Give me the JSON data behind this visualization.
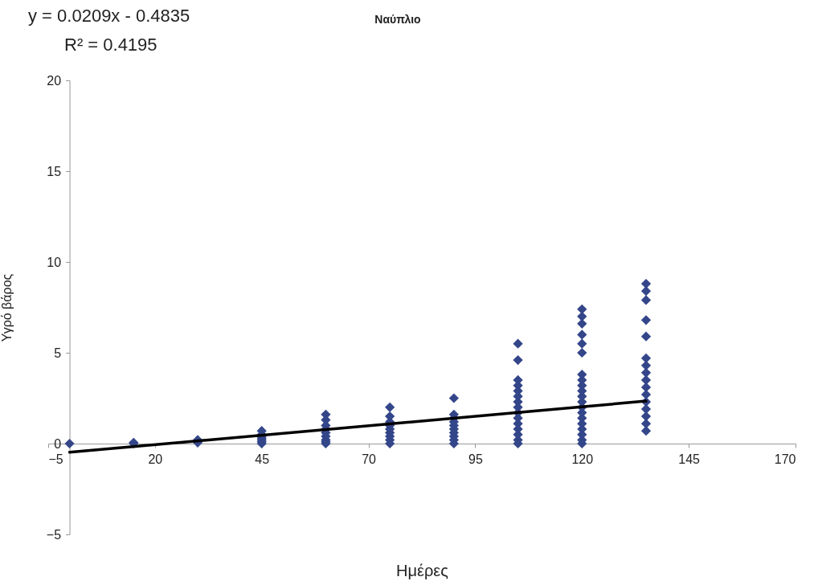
{
  "chart_data": {
    "type": "scatter",
    "title": "Ναύπλιο",
    "xlabel": "Ημέρες",
    "ylabel": "Υγρό βάρος",
    "annotations": [
      "y = 0.0209x - 0.4835",
      "R² = 0.4195"
    ],
    "xlim": [
      -5,
      170
    ],
    "xticks": [
      -5,
      20,
      45,
      70,
      95,
      120,
      145,
      170
    ],
    "ylim": [
      -5,
      20
    ],
    "yticks": [
      -5,
      0,
      5,
      10,
      15,
      20
    ],
    "grid": false,
    "marker": "diamond",
    "series": [
      {
        "color": "#34468a",
        "x": [
          0,
          15,
          15,
          30,
          30,
          45,
          45,
          45,
          45,
          45,
          45,
          45,
          60,
          60,
          60,
          60,
          60,
          60,
          60,
          60,
          60,
          75,
          75,
          75,
          75,
          75,
          75,
          75,
          75,
          75,
          90,
          90,
          90,
          90,
          90,
          90,
          90,
          90,
          90,
          90,
          105,
          105,
          105,
          105,
          105,
          105,
          105,
          105,
          105,
          105,
          105,
          105,
          105,
          105,
          105,
          120,
          120,
          120,
          120,
          120,
          120,
          120,
          120,
          120,
          120,
          120,
          120,
          120,
          120,
          120,
          120,
          120,
          120,
          120,
          120,
          135,
          135,
          135,
          135,
          135,
          135,
          135,
          135,
          135,
          135,
          135,
          135,
          135,
          135,
          135,
          135
        ],
        "values": [
          0,
          0,
          0.05,
          0.05,
          0.2,
          0,
          0.1,
          0.2,
          0.3,
          0.4,
          0.5,
          0.7,
          0,
          0.1,
          0.2,
          0.4,
          0.6,
          0.8,
          1.0,
          1.3,
          1.6,
          0,
          0.2,
          0.4,
          0.6,
          0.8,
          1.0,
          1.2,
          1.5,
          2.0,
          0,
          0.2,
          0.4,
          0.6,
          0.8,
          1.0,
          1.2,
          1.4,
          1.6,
          2.5,
          0,
          0.2,
          0.5,
          0.8,
          1.1,
          1.4,
          1.7,
          2.0,
          2.3,
          2.6,
          2.9,
          3.2,
          3.5,
          4.6,
          5.5,
          0,
          0.2,
          0.5,
          0.8,
          1.1,
          1.4,
          1.7,
          2.0,
          2.3,
          2.6,
          2.9,
          3.2,
          3.5,
          3.8,
          5.0,
          5.5,
          6.0,
          6.6,
          7.0,
          7.4,
          0.7,
          1.1,
          1.5,
          1.9,
          2.3,
          2.7,
          3.1,
          3.5,
          3.9,
          4.3,
          4.7,
          5.9,
          6.8,
          7.9,
          8.4,
          8.8
        ]
      },
      {
        "type": "line",
        "marker": "none",
        "color": "#000000",
        "x": [
          0,
          135
        ],
        "values": [
          -0.48,
          2.34
        ]
      }
    ]
  }
}
